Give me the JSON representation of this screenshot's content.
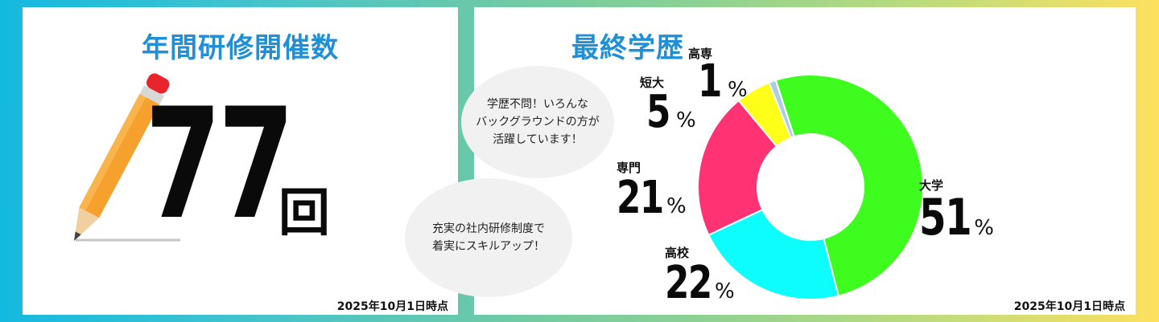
{
  "left_panel": {
    "title": "年間研修開催数",
    "count": "77",
    "unit": "回",
    "bubble": "充実の社内研修制度で\n着実にスキルアップ！",
    "date": "2025年10月1日時点"
  },
  "right_panel": {
    "title": "最終学歴",
    "bubble": "学歴不問！いろんな\nバックグラウンドの方が\n活躍しています！",
    "date": "2025年10月1日時点"
  },
  "chart_data": {
    "type": "pie",
    "donut": true,
    "title": "最終学歴",
    "unit": "%",
    "categories": [
      "大学",
      "高校",
      "専門",
      "短大",
      "高専"
    ],
    "values": [
      51,
      22,
      21,
      5,
      1
    ],
    "colors": [
      "#3efc1e",
      "#0dfdfd",
      "#ff3274",
      "#ffff1a",
      "#a9cfe0"
    ],
    "start_angle_deg": 342,
    "labels": [
      {
        "name": "大学",
        "value": "51",
        "pct": "%"
      },
      {
        "name": "高校",
        "value": "22",
        "pct": "%"
      },
      {
        "name": "専門",
        "value": "21",
        "pct": "%"
      },
      {
        "name": "短大",
        "value": "5",
        "pct": "%"
      },
      {
        "name": "高専",
        "value": "1",
        "pct": "%"
      }
    ]
  }
}
